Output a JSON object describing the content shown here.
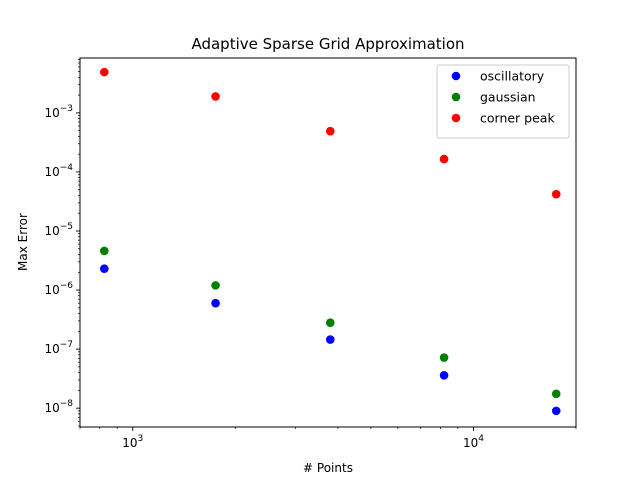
{
  "chart_data": {
    "type": "scatter",
    "title": "Adaptive Sparse Grid Approximation",
    "xlabel": "# Points",
    "ylabel": "Max Error",
    "xscale": "log",
    "yscale": "log",
    "xlim": [
      700,
      20000
    ],
    "ylim": [
      4.8e-09,
      0.0085
    ],
    "grid": false,
    "legend": "top-right",
    "x_ticks": [
      {
        "value": 1000,
        "base": "10",
        "exp": "3"
      },
      {
        "value": 10000,
        "base": "10",
        "exp": "4"
      }
    ],
    "y_ticks": [
      {
        "value": 1e-08,
        "base": "10",
        "exp": "−8"
      },
      {
        "value": 1e-07,
        "base": "10",
        "exp": "−7"
      },
      {
        "value": 1e-06,
        "base": "10",
        "exp": "−6"
      },
      {
        "value": 1e-05,
        "base": "10",
        "exp": "−5"
      },
      {
        "value": 0.0001,
        "base": "10",
        "exp": "−4"
      },
      {
        "value": 0.001,
        "base": "10",
        "exp": "−3"
      }
    ],
    "series": [
      {
        "name": "oscillatory",
        "color": "#0000ff",
        "x": [
          825,
          1750,
          3800,
          8200,
          17500
        ],
        "y": [
          2.3e-06,
          6e-07,
          1.45e-07,
          3.6e-08,
          9e-09
        ]
      },
      {
        "name": "gaussian",
        "color": "#008000",
        "x": [
          825,
          1750,
          3800,
          8200,
          17500
        ],
        "y": [
          4.6e-06,
          1.2e-06,
          2.8e-07,
          7.2e-08,
          1.75e-08
        ]
      },
      {
        "name": "corner peak",
        "color": "#ff0000",
        "x": [
          825,
          1750,
          3800,
          8200,
          17500
        ],
        "y": [
          0.0049,
          0.0019,
          0.00049,
          0.000165,
          4.2e-05
        ]
      }
    ]
  }
}
